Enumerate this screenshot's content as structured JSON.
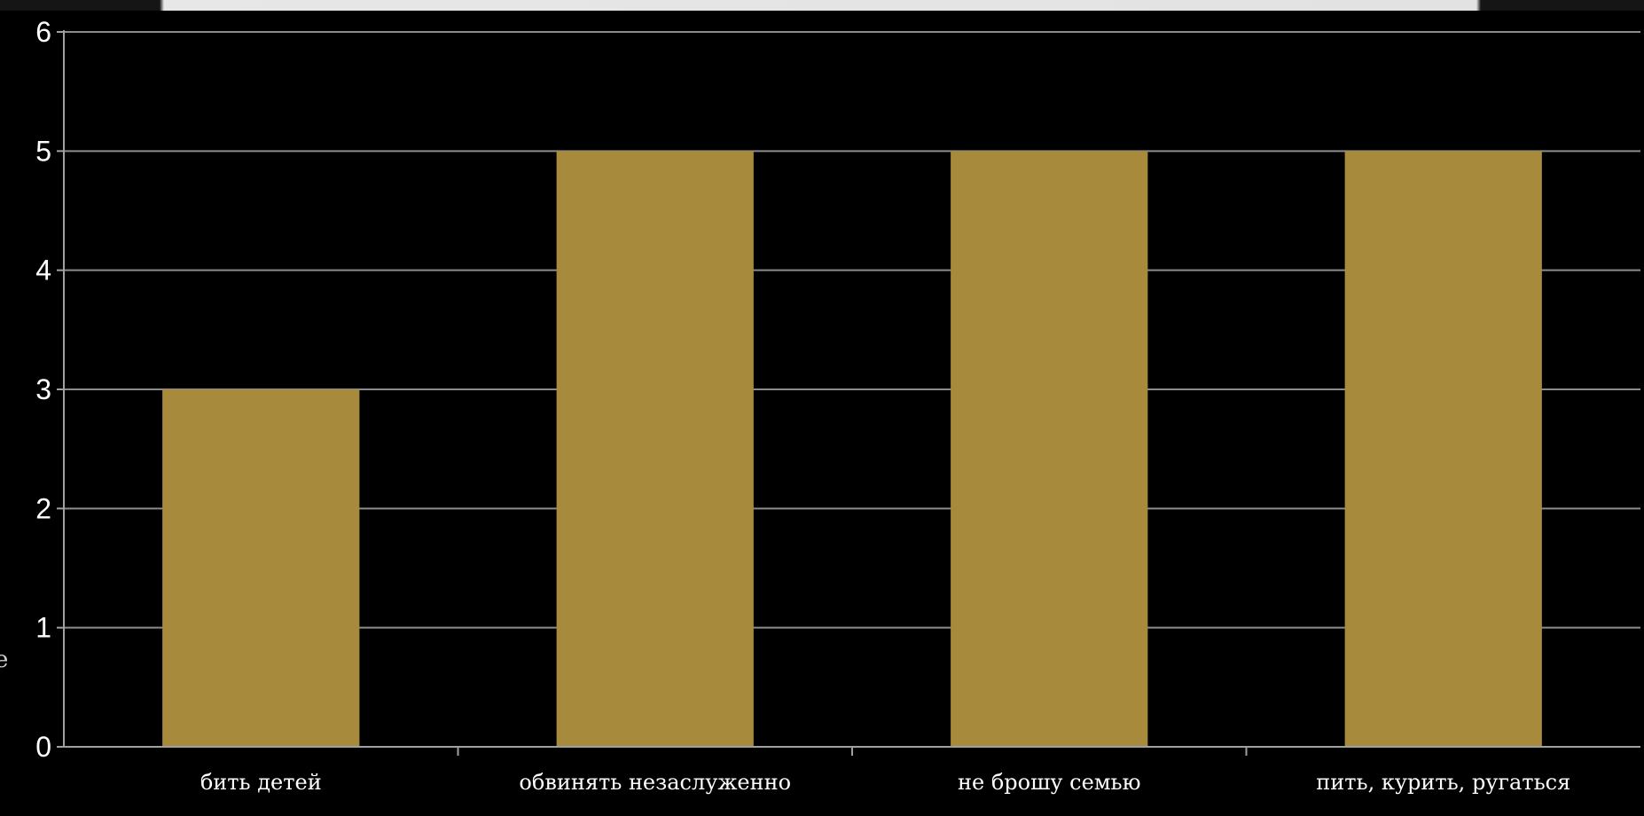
{
  "chart_data": {
    "type": "bar",
    "categories": [
      "бить детей",
      "обвинять незаслуженно",
      "не брошу семью",
      "пить, курить, ругаться"
    ],
    "values": [
      3,
      5,
      5,
      5
    ],
    "yticks": [
      0,
      1,
      2,
      3,
      4,
      5,
      6
    ],
    "ylim": [
      0,
      6
    ],
    "grid": true,
    "legend": "none",
    "colors": {
      "bar": "#a78a3c",
      "grid": "#8c8c8c",
      "axis": "#a0a0a0",
      "background": "#000000"
    }
  }
}
